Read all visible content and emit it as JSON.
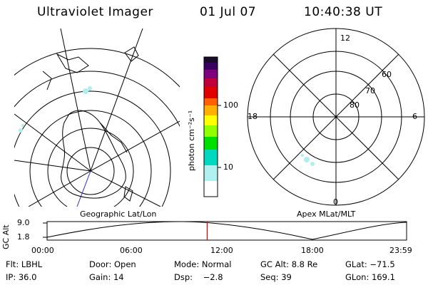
{
  "header": {
    "instrument": "Ultraviolet Imager",
    "date": "01 Jul 07",
    "time": "10:40:38 UT"
  },
  "left_map": {
    "caption": "Geographic Lat/Lon"
  },
  "colorbar": {
    "unit_label": "photon cm⁻²s⁻¹",
    "ticks": [
      {
        "label": "100",
        "value": 100
      },
      {
        "label": "10",
        "value": 10
      }
    ],
    "scale": "log",
    "colors": [
      "#1a0a2a",
      "#3a0060",
      "#800080",
      "#c0003c",
      "#e00000",
      "#ff6000",
      "#ffb000",
      "#ffff00",
      "#90ff00",
      "#00e000",
      "#00d8c0",
      "#b0f0f0",
      "#ffffff"
    ]
  },
  "right_map": {
    "caption": "Apex MLat/MLT",
    "mlt_labels": {
      "top": "12",
      "left": "18",
      "right": "6",
      "bottom": "0"
    },
    "mlat_labels": [
      "60",
      "70",
      "80"
    ]
  },
  "altitude_plot": {
    "ylabel": "GC Alt",
    "y_ticks": [
      "9.0",
      "1.8"
    ],
    "x_ticks": [
      "00:00",
      "06:00",
      "12:00",
      "18:00",
      "23:59"
    ],
    "current_time_marker_hours": 10.677,
    "marker_color": "#e00000"
  },
  "info": {
    "filter": "Flt: LBHL",
    "door": "Door: Open",
    "mode": "Mode: Normal",
    "gc_alt": "GC Alt: 8.8 Re",
    "glat": "GLat: −71.5",
    "ip": "IP: 36.0",
    "gain": "Gain: 14",
    "dsp": "Dsp:    −2.8",
    "seq": "Seq: 39",
    "glon": "GLon: 169.1"
  }
}
